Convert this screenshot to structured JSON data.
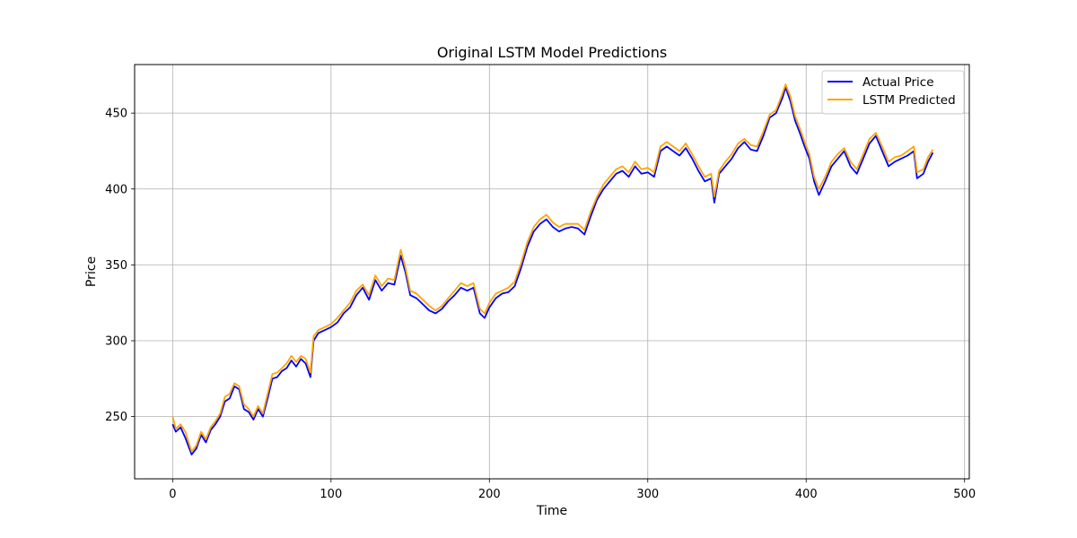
{
  "chart_data": {
    "type": "line",
    "title": "Original LSTM Model Predictions",
    "xlabel": "Time",
    "ylabel": "Price",
    "xlim": [
      -24,
      503
    ],
    "ylim": [
      209,
      482
    ],
    "xticks": [
      0,
      100,
      200,
      300,
      400,
      500
    ],
    "yticks": [
      250,
      300,
      350,
      400,
      450
    ],
    "grid": true,
    "legend_position": "upper right",
    "series": [
      {
        "name": "Actual Price",
        "color": "#0000ff",
        "points": [
          [
            0,
            245
          ],
          [
            2,
            240
          ],
          [
            5,
            243
          ],
          [
            8,
            236
          ],
          [
            12,
            225
          ],
          [
            15,
            229
          ],
          [
            18,
            238
          ],
          [
            21,
            233
          ],
          [
            24,
            241
          ],
          [
            27,
            245
          ],
          [
            30,
            250
          ],
          [
            33,
            260
          ],
          [
            36,
            262
          ],
          [
            39,
            270
          ],
          [
            42,
            268
          ],
          [
            45,
            255
          ],
          [
            48,
            253
          ],
          [
            51,
            248
          ],
          [
            54,
            255
          ],
          [
            57,
            250
          ],
          [
            60,
            262
          ],
          [
            63,
            275
          ],
          [
            66,
            276
          ],
          [
            69,
            280
          ],
          [
            72,
            282
          ],
          [
            75,
            287
          ],
          [
            78,
            283
          ],
          [
            81,
            288
          ],
          [
            84,
            285
          ],
          [
            87,
            276
          ],
          [
            89,
            300
          ],
          [
            92,
            305
          ],
          [
            96,
            307
          ],
          [
            100,
            309
          ],
          [
            104,
            312
          ],
          [
            108,
            318
          ],
          [
            112,
            322
          ],
          [
            116,
            330
          ],
          [
            120,
            335
          ],
          [
            124,
            327
          ],
          [
            128,
            340
          ],
          [
            132,
            333
          ],
          [
            136,
            338
          ],
          [
            140,
            337
          ],
          [
            144,
            356
          ],
          [
            147,
            345
          ],
          [
            150,
            330
          ],
          [
            154,
            328
          ],
          [
            158,
            324
          ],
          [
            162,
            320
          ],
          [
            166,
            318
          ],
          [
            170,
            321
          ],
          [
            174,
            326
          ],
          [
            178,
            330
          ],
          [
            182,
            335
          ],
          [
            186,
            333
          ],
          [
            190,
            335
          ],
          [
            194,
            318
          ],
          [
            197,
            315
          ],
          [
            200,
            322
          ],
          [
            204,
            328
          ],
          [
            208,
            331
          ],
          [
            212,
            332
          ],
          [
            216,
            336
          ],
          [
            220,
            348
          ],
          [
            224,
            362
          ],
          [
            228,
            372
          ],
          [
            232,
            377
          ],
          [
            236,
            380
          ],
          [
            240,
            375
          ],
          [
            244,
            372
          ],
          [
            248,
            374
          ],
          [
            252,
            375
          ],
          [
            256,
            374
          ],
          [
            260,
            370
          ],
          [
            264,
            382
          ],
          [
            268,
            393
          ],
          [
            272,
            400
          ],
          [
            276,
            405
          ],
          [
            280,
            410
          ],
          [
            284,
            412
          ],
          [
            288,
            408
          ],
          [
            292,
            415
          ],
          [
            296,
            410
          ],
          [
            300,
            411
          ],
          [
            304,
            408
          ],
          [
            308,
            425
          ],
          [
            312,
            428
          ],
          [
            316,
            425
          ],
          [
            320,
            422
          ],
          [
            324,
            427
          ],
          [
            328,
            420
          ],
          [
            332,
            412
          ],
          [
            336,
            405
          ],
          [
            340,
            407
          ],
          [
            342,
            391
          ],
          [
            345,
            410
          ],
          [
            349,
            415
          ],
          [
            353,
            420
          ],
          [
            357,
            427
          ],
          [
            361,
            431
          ],
          [
            365,
            426
          ],
          [
            369,
            425
          ],
          [
            373,
            435
          ],
          [
            377,
            447
          ],
          [
            381,
            450
          ],
          [
            385,
            460
          ],
          [
            387,
            467
          ],
          [
            390,
            458
          ],
          [
            393,
            445
          ],
          [
            396,
            437
          ],
          [
            399,
            428
          ],
          [
            402,
            420
          ],
          [
            405,
            405
          ],
          [
            408,
            396
          ],
          [
            412,
            405
          ],
          [
            416,
            415
          ],
          [
            420,
            420
          ],
          [
            424,
            425
          ],
          [
            428,
            415
          ],
          [
            432,
            410
          ],
          [
            436,
            420
          ],
          [
            440,
            430
          ],
          [
            444,
            435
          ],
          [
            448,
            425
          ],
          [
            452,
            415
          ],
          [
            456,
            418
          ],
          [
            460,
            420
          ],
          [
            464,
            422
          ],
          [
            468,
            425
          ],
          [
            470,
            407
          ],
          [
            474,
            410
          ],
          [
            477,
            418
          ],
          [
            480,
            424
          ]
        ]
      },
      {
        "name": "LSTM Predicted",
        "color": "#ffa500",
        "points": [
          [
            0,
            250
          ],
          [
            2,
            242
          ],
          [
            5,
            245
          ],
          [
            8,
            240
          ],
          [
            12,
            227
          ],
          [
            15,
            231
          ],
          [
            18,
            240
          ],
          [
            21,
            235
          ],
          [
            24,
            243
          ],
          [
            27,
            247
          ],
          [
            30,
            252
          ],
          [
            33,
            263
          ],
          [
            36,
            265
          ],
          [
            39,
            272
          ],
          [
            42,
            270
          ],
          [
            45,
            258
          ],
          [
            48,
            255
          ],
          [
            51,
            250
          ],
          [
            54,
            257
          ],
          [
            57,
            252
          ],
          [
            60,
            265
          ],
          [
            63,
            278
          ],
          [
            66,
            279
          ],
          [
            69,
            282
          ],
          [
            72,
            285
          ],
          [
            75,
            290
          ],
          [
            78,
            286
          ],
          [
            81,
            290
          ],
          [
            84,
            288
          ],
          [
            87,
            279
          ],
          [
            89,
            303
          ],
          [
            92,
            307
          ],
          [
            96,
            309
          ],
          [
            100,
            311
          ],
          [
            104,
            315
          ],
          [
            108,
            320
          ],
          [
            112,
            325
          ],
          [
            116,
            333
          ],
          [
            120,
            337
          ],
          [
            124,
            330
          ],
          [
            128,
            343
          ],
          [
            132,
            336
          ],
          [
            136,
            341
          ],
          [
            140,
            340
          ],
          [
            144,
            360
          ],
          [
            147,
            348
          ],
          [
            150,
            333
          ],
          [
            154,
            331
          ],
          [
            158,
            327
          ],
          [
            162,
            323
          ],
          [
            166,
            320
          ],
          [
            170,
            323
          ],
          [
            174,
            328
          ],
          [
            178,
            333
          ],
          [
            182,
            338
          ],
          [
            186,
            336
          ],
          [
            190,
            338
          ],
          [
            194,
            321
          ],
          [
            197,
            318
          ],
          [
            200,
            325
          ],
          [
            204,
            331
          ],
          [
            208,
            333
          ],
          [
            212,
            335
          ],
          [
            216,
            339
          ],
          [
            220,
            351
          ],
          [
            224,
            365
          ],
          [
            228,
            375
          ],
          [
            232,
            380
          ],
          [
            236,
            383
          ],
          [
            240,
            378
          ],
          [
            244,
            375
          ],
          [
            248,
            377
          ],
          [
            252,
            377
          ],
          [
            256,
            377
          ],
          [
            260,
            373
          ],
          [
            264,
            385
          ],
          [
            268,
            395
          ],
          [
            272,
            403
          ],
          [
            276,
            408
          ],
          [
            280,
            413
          ],
          [
            284,
            415
          ],
          [
            288,
            411
          ],
          [
            292,
            418
          ],
          [
            296,
            413
          ],
          [
            300,
            414
          ],
          [
            304,
            411
          ],
          [
            308,
            428
          ],
          [
            312,
            431
          ],
          [
            316,
            428
          ],
          [
            320,
            425
          ],
          [
            324,
            430
          ],
          [
            328,
            423
          ],
          [
            332,
            415
          ],
          [
            336,
            408
          ],
          [
            340,
            410
          ],
          [
            342,
            395
          ],
          [
            345,
            412
          ],
          [
            349,
            418
          ],
          [
            353,
            423
          ],
          [
            357,
            430
          ],
          [
            361,
            433
          ],
          [
            365,
            429
          ],
          [
            369,
            428
          ],
          [
            373,
            438
          ],
          [
            377,
            449
          ],
          [
            381,
            452
          ],
          [
            385,
            463
          ],
          [
            387,
            469
          ],
          [
            390,
            461
          ],
          [
            393,
            448
          ],
          [
            396,
            440
          ],
          [
            399,
            431
          ],
          [
            402,
            423
          ],
          [
            405,
            408
          ],
          [
            408,
            400
          ],
          [
            412,
            408
          ],
          [
            416,
            418
          ],
          [
            420,
            423
          ],
          [
            424,
            427
          ],
          [
            428,
            418
          ],
          [
            432,
            413
          ],
          [
            436,
            423
          ],
          [
            440,
            433
          ],
          [
            444,
            437
          ],
          [
            448,
            428
          ],
          [
            452,
            418
          ],
          [
            456,
            421
          ],
          [
            460,
            422
          ],
          [
            464,
            425
          ],
          [
            468,
            428
          ],
          [
            470,
            411
          ],
          [
            474,
            413
          ],
          [
            477,
            421
          ],
          [
            480,
            426
          ]
        ]
      }
    ]
  }
}
